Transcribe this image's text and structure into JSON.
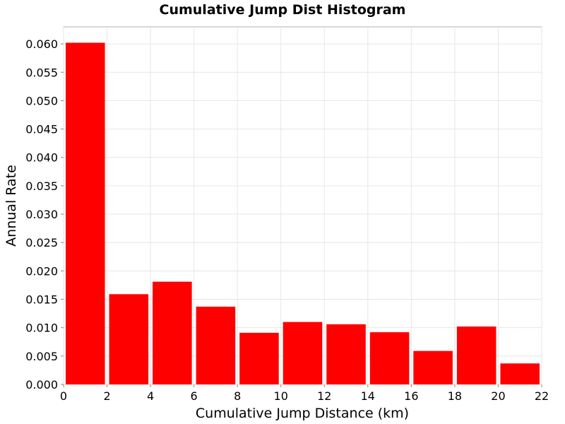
{
  "chart_data": {
    "type": "bar",
    "title": "Cumulative Jump Dist Histogram",
    "xlabel": "Cumulative Jump Distance (km)",
    "ylabel": "Annual Rate",
    "xlim": [
      0,
      22
    ],
    "ylim": [
      0,
      0.063
    ],
    "x_ticks": [
      "0",
      "2",
      "4",
      "6",
      "8",
      "10",
      "12",
      "14",
      "16",
      "18",
      "20",
      "22"
    ],
    "y_ticks": [
      "0.000",
      "0.005",
      "0.010",
      "0.015",
      "0.020",
      "0.025",
      "0.030",
      "0.035",
      "0.040",
      "0.045",
      "0.050",
      "0.055",
      "0.060"
    ],
    "bin_width": 2,
    "bins": [
      {
        "x": 1,
        "value": 0.0602
      },
      {
        "x": 3,
        "value": 0.0159
      },
      {
        "x": 5,
        "value": 0.0181
      },
      {
        "x": 7,
        "value": 0.0137
      },
      {
        "x": 9,
        "value": 0.0091
      },
      {
        "x": 11,
        "value": 0.011
      },
      {
        "x": 13,
        "value": 0.0106
      },
      {
        "x": 15,
        "value": 0.0092
      },
      {
        "x": 17,
        "value": 0.0059
      },
      {
        "x": 19,
        "value": 0.0102
      },
      {
        "x": 21,
        "value": 0.0037
      }
    ],
    "grid": true,
    "legend": false,
    "bar_color": "#ff0000"
  }
}
